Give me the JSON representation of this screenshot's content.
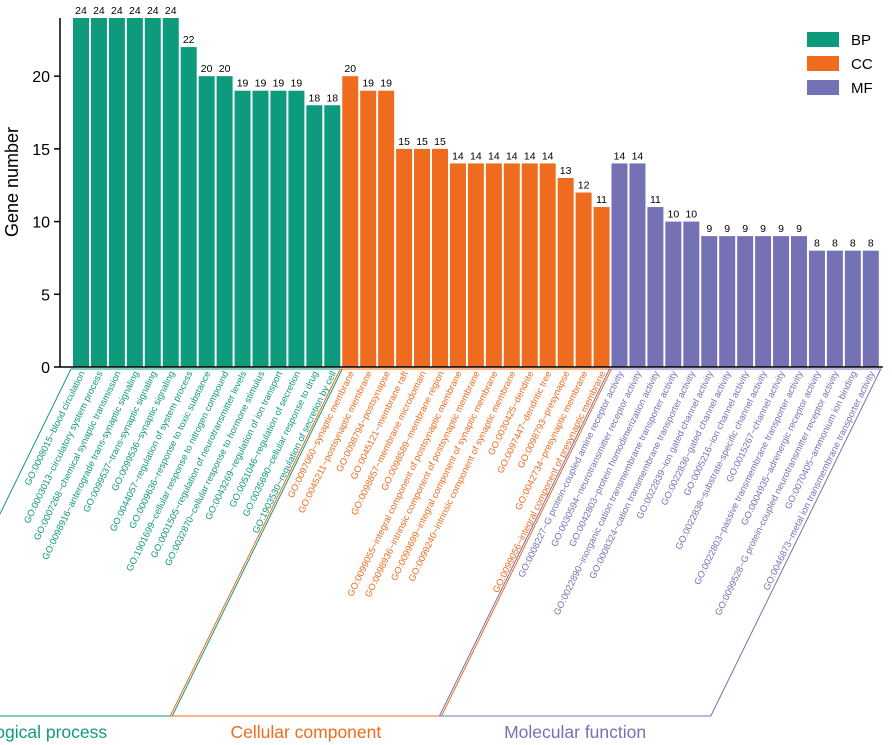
{
  "chart_data": {
    "type": "bar",
    "title": "",
    "xlabel": "",
    "ylabel": "Gene number",
    "ylim": [
      0,
      24
    ],
    "yticks": [
      0,
      5,
      10,
      15,
      20
    ],
    "grid": false,
    "legend_position": "top-right",
    "legend": [
      {
        "key": "BP",
        "label": "BP",
        "color": "#0e9a7c"
      },
      {
        "key": "CC",
        "label": "CC",
        "color": "#ef6c1e"
      },
      {
        "key": "MF",
        "label": "MF",
        "color": "#7472b4"
      }
    ],
    "groups": [
      {
        "key": "BP",
        "name": "Biological process",
        "color": "#0e9a7c"
      },
      {
        "key": "CC",
        "name": "Cellular component",
        "color": "#ef6c1e"
      },
      {
        "key": "MF",
        "name": "Molecular function",
        "color": "#7472b4"
      }
    ],
    "bars": [
      {
        "label": "GO:0008015~blood circulation",
        "value": 24,
        "group": "BP"
      },
      {
        "label": "GO:0003013~circulatory system process",
        "value": 24,
        "group": "BP"
      },
      {
        "label": "GO:0007268~chemical synaptic transmission",
        "value": 24,
        "group": "BP"
      },
      {
        "label": "GO:0098916~anterograde trans-synaptic signaling",
        "value": 24,
        "group": "BP"
      },
      {
        "label": "GO:0099537~trans-synaptic signaling",
        "value": 24,
        "group": "BP"
      },
      {
        "label": "GO:0099536~synaptic signaling",
        "value": 24,
        "group": "BP"
      },
      {
        "label": "GO:0044057~regulation of system process",
        "value": 22,
        "group": "BP"
      },
      {
        "label": "GO:0009636~response to toxic substance",
        "value": 20,
        "group": "BP"
      },
      {
        "label": "GO:1901699~cellular response to nitrogen compound",
        "value": 20,
        "group": "BP"
      },
      {
        "label": "GO:0001505~regulation of neurotransmitter levels",
        "value": 19,
        "group": "BP"
      },
      {
        "label": "GO:0032870~cellular response to hormone stimulus",
        "value": 19,
        "group": "BP"
      },
      {
        "label": "GO:0043269~regulation of ion transport",
        "value": 19,
        "group": "BP"
      },
      {
        "label": "GO:0051046~regulation of secretion",
        "value": 19,
        "group": "BP"
      },
      {
        "label": "GO:0035690~cellular response to drug",
        "value": 18,
        "group": "BP"
      },
      {
        "label": "GO:1903530~regulation of secretion by cell",
        "value": 18,
        "group": "BP"
      },
      {
        "label": "GO:0097060~synaptic membrane",
        "value": 20,
        "group": "CC"
      },
      {
        "label": "GO:0045211~postsynaptic membrane",
        "value": 19,
        "group": "CC"
      },
      {
        "label": "GO:0098794~postsynapse",
        "value": 19,
        "group": "CC"
      },
      {
        "label": "GO:0045121~membrane raft",
        "value": 15,
        "group": "CC"
      },
      {
        "label": "GO:0098857~membrane microdomain",
        "value": 15,
        "group": "CC"
      },
      {
        "label": "GO:0098589~membrane region",
        "value": 15,
        "group": "CC"
      },
      {
        "label": "GO:0099055~integral component of postsynaptic membrane",
        "value": 14,
        "group": "CC"
      },
      {
        "label": "GO:0098936~intrinsic component of postsynaptic membrane",
        "value": 14,
        "group": "CC"
      },
      {
        "label": "GO:0099699~integral component of synaptic membrane",
        "value": 14,
        "group": "CC"
      },
      {
        "label": "GO:0099240~intrinsic component of synaptic membrane",
        "value": 14,
        "group": "CC"
      },
      {
        "label": "GO:0030425~dendrite",
        "value": 14,
        "group": "CC"
      },
      {
        "label": "GO:0097447~dendritic tree",
        "value": 14,
        "group": "CC"
      },
      {
        "label": "GO:0098793~presynapse",
        "value": 13,
        "group": "CC"
      },
      {
        "label": "GO:0042734~presynaptic membrane",
        "value": 12,
        "group": "CC"
      },
      {
        "label": "GO:0099056~integral component of presynaptic membrane",
        "value": 11,
        "group": "CC"
      },
      {
        "label": "GO:0008227~G protein-coupled amine receptor activity",
        "value": 14,
        "group": "MF"
      },
      {
        "label": "GO:0030594~neurotransmitter receptor activity",
        "value": 14,
        "group": "MF"
      },
      {
        "label": "GO:0042803~protein homodimerization activity",
        "value": 11,
        "group": "MF"
      },
      {
        "label": "GO:0022890~inorganic cation transmembrane transporter activity",
        "value": 10,
        "group": "MF"
      },
      {
        "label": "GO:0008324~cation transmembrane transporter activity",
        "value": 10,
        "group": "MF"
      },
      {
        "label": "GO:0022839~ion gated channel activity",
        "value": 9,
        "group": "MF"
      },
      {
        "label": "GO:0022836~gated channel activity",
        "value": 9,
        "group": "MF"
      },
      {
        "label": "GO:0005216~ion channel activity",
        "value": 9,
        "group": "MF"
      },
      {
        "label": "GO:0022838~substrate-specific channel activity",
        "value": 9,
        "group": "MF"
      },
      {
        "label": "GO:0015267~channel activity",
        "value": 9,
        "group": "MF"
      },
      {
        "label": "GO:0022803~passive transmembrane transporter activity",
        "value": 9,
        "group": "MF"
      },
      {
        "label": "GO:0004935~adrenergic receptor activity",
        "value": 8,
        "group": "MF"
      },
      {
        "label": "GO:0099528~G protein-coupled neurotransmitter receptor activity",
        "value": 8,
        "group": "MF"
      },
      {
        "label": "GO:0070405~ammonium ion binding",
        "value": 8,
        "group": "MF"
      },
      {
        "label": "GO:0046873~metal ion transmembrane transporter activity",
        "value": 8,
        "group": "MF"
      }
    ]
  }
}
